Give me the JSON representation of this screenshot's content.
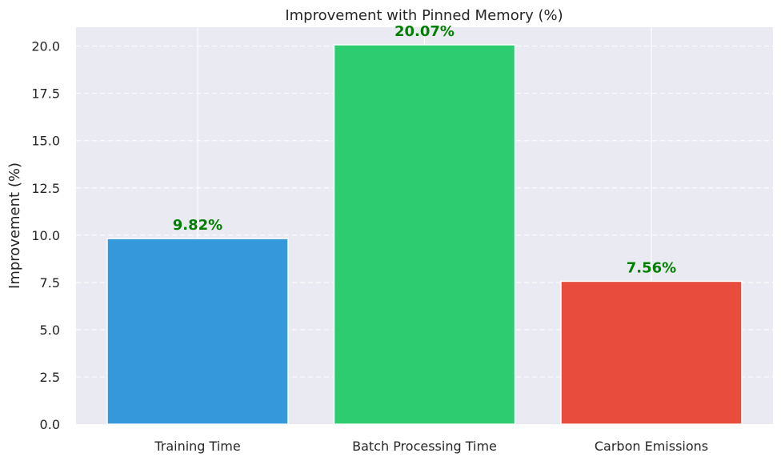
{
  "chart_data": {
    "type": "bar",
    "title": "Improvement with Pinned Memory (%)",
    "xlabel": "",
    "ylabel": "Improvement (%)",
    "categories": [
      "Training Time",
      "Batch Processing Time",
      "Carbon Emissions"
    ],
    "values": [
      9.82,
      20.07,
      7.56
    ],
    "data_labels": [
      "9.82%",
      "20.07%",
      "7.56%"
    ],
    "colors": [
      "#3498db",
      "#2ecc71",
      "#e74c3c"
    ],
    "label_color": "#008000",
    "ylim": [
      0,
      21
    ],
    "yticks": [
      0,
      2.5,
      5,
      7.5,
      10,
      12.5,
      15,
      17.5,
      20
    ],
    "ytick_labels": [
      "0.0",
      "2.5",
      "5.0",
      "7.5",
      "10.0",
      "12.5",
      "15.0",
      "17.5",
      "20.0"
    ],
    "grid": true,
    "background": "#eaeaf2"
  }
}
